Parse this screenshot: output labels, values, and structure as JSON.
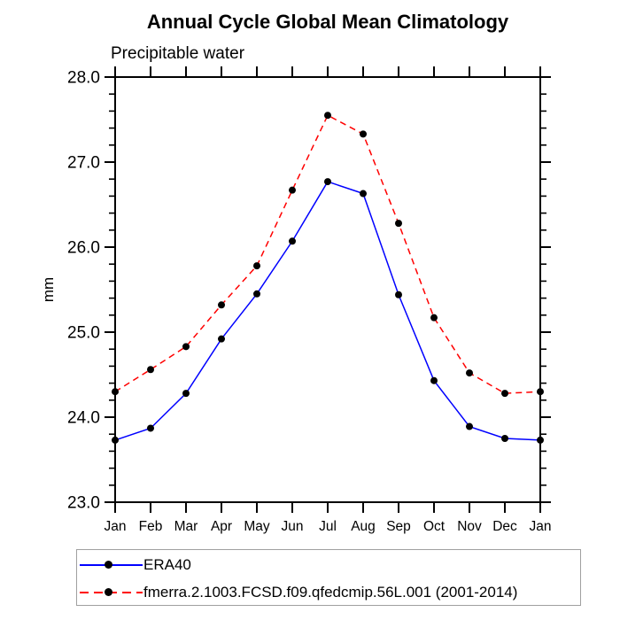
{
  "chart_data": {
    "type": "line",
    "title": "Annual Cycle Global Mean Climatology",
    "subtitle": "Precipitable water",
    "ylabel": "mm",
    "categories": [
      "Jan",
      "Feb",
      "Mar",
      "Apr",
      "May",
      "Jun",
      "Jul",
      "Aug",
      "Sep",
      "Oct",
      "Nov",
      "Dec",
      "Jan"
    ],
    "ylim": [
      23.0,
      28.0
    ],
    "y_tick_labels": [
      "23.0",
      "24.0",
      "25.0",
      "26.0",
      "27.0",
      "28.0"
    ],
    "y_major_step": 1.0,
    "y_minor_step": 0.2,
    "grid": false,
    "legend_position": "bottom-left-outside",
    "colors": {
      "axis": "#000000",
      "marker": "#000000",
      "legend_border": "#a0a0a0",
      "background": "#ffffff"
    },
    "series": [
      {
        "name": "ERA40",
        "color": "#0000ff",
        "line_style": "solid",
        "marker": "filled-circle",
        "values": [
          23.73,
          23.87,
          24.28,
          24.92,
          25.45,
          26.07,
          26.77,
          26.63,
          25.44,
          24.43,
          23.89,
          23.75,
          23.73
        ]
      },
      {
        "name": "fmerra.2.1003.FCSD.f09.qfedcmip.56L.001 (2001-2014)",
        "color": "#ff0000",
        "line_style": "dashed",
        "marker": "filled-circle",
        "values": [
          24.3,
          24.56,
          24.83,
          25.32,
          25.78,
          26.67,
          27.55,
          27.33,
          26.28,
          25.17,
          24.52,
          24.28,
          24.3
        ]
      }
    ]
  }
}
